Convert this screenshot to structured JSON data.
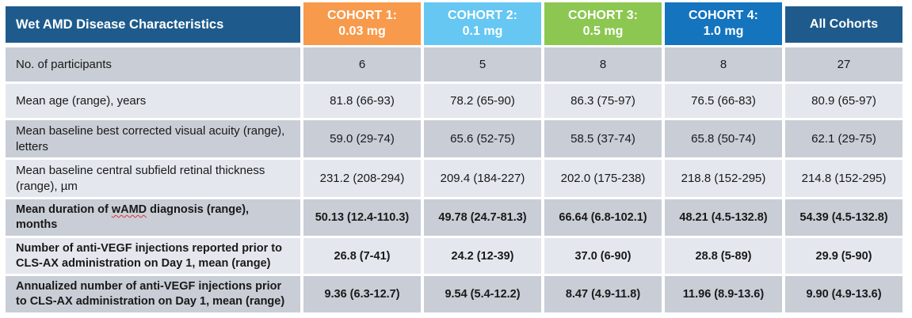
{
  "colors": {
    "header_dark_blue": "#1E5B8C",
    "cohort1_orange": "#F79A4C",
    "cohort2_light_blue": "#66C7F2",
    "cohort3_green": "#8CC751",
    "cohort4_mid_blue": "#1474BE",
    "row_shade_dark": "#C9CDD6",
    "row_shade_light": "#E4E8EE",
    "header_text": "#FFFFFF",
    "body_text": "#191919",
    "spellcheck_underline_red": "#E0372E"
  },
  "table": {
    "title_cell": "Wet AMD Disease Characteristics",
    "header": [
      {
        "label": "Wet AMD Disease Characteristics",
        "style": "dark",
        "position": "first"
      },
      {
        "line1": "COHORT 1:",
        "line2": "0.03 mg",
        "style": "orange"
      },
      {
        "line1": "COHORT 2:",
        "line2": "0.1 mg",
        "style": "lightblue"
      },
      {
        "line1": "COHORT 3:",
        "line2": "0.5 mg",
        "style": "green"
      },
      {
        "line1": "COHORT 4:",
        "line2": "1.0 mg",
        "style": "midblue"
      },
      {
        "label": "All Cohorts",
        "style": "dark",
        "position": "last"
      }
    ],
    "rows": [
      {
        "label": "No. of participants",
        "values": [
          "6",
          "5",
          "8",
          "8",
          "27"
        ],
        "bold": false,
        "shade": "dark"
      },
      {
        "label": "Mean age (range), years",
        "values": [
          "81.8 (66-93)",
          "78.2 (65-90)",
          "86.3 (75-97)",
          "76.5 (66-83)",
          "80.9 (65-97)"
        ],
        "bold": false,
        "shade": "light"
      },
      {
        "label": "Mean baseline best corrected visual acuity (range), letters",
        "values": [
          "59.0 (29-74)",
          "65.6 (52-75)",
          "58.5 (37-74)",
          "65.8 (50-74)",
          "62.1 (29-75)"
        ],
        "bold": false,
        "shade": "dark"
      },
      {
        "label": "Mean baseline central subfield retinal thickness (range), µm",
        "values": [
          "231.2 (208-294)",
          "209.4 (184-227)",
          "202.0 (175-238)",
          "218.8 (152-295)",
          "214.8 (152-295)"
        ],
        "bold": false,
        "shade": "light"
      },
      {
        "label_parts": {
          "pre": "Mean duration of ",
          "wavy": "wAMD",
          "post": " diagnosis (range), months"
        },
        "values": [
          "50.13 (12.4-110.3)",
          "49.78 (24.7-81.3)",
          "66.64 (6.8-102.1)",
          "48.21 (4.5-132.8)",
          "54.39 (4.5-132.8)"
        ],
        "bold": true,
        "shade": "dark"
      },
      {
        "label": "Number of anti-VEGF injections reported prior to CLS-AX administration on Day 1, mean (range)",
        "values": [
          "26.8 (7-41)",
          "24.2 (12-39)",
          "37.0 (6-90)",
          "28.8 (5-89)",
          "29.9 (5-90)"
        ],
        "bold": true,
        "shade": "light"
      },
      {
        "label": "Annualized number of anti-VEGF injections prior to CLS-AX administration on Day 1, mean (range)",
        "values": [
          "9.36 (6.3-12.7)",
          "9.54 (5.4-12.2)",
          "8.47 (4.9-11.8)",
          "11.96 (8.9-13.6)",
          "9.90 (4.9-13.6)"
        ],
        "bold": true,
        "shade": "dark"
      }
    ]
  }
}
